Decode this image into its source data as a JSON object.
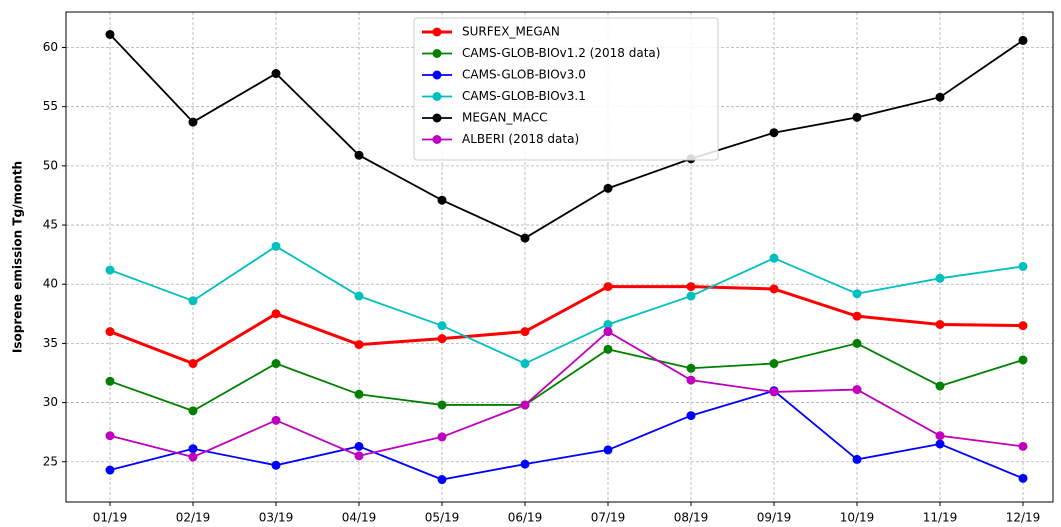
{
  "chart_data": {
    "type": "line",
    "ylabel": "Isoprene emission Tg/month",
    "categories": [
      "01/19",
      "02/19",
      "03/19",
      "04/19",
      "05/19",
      "06/19",
      "07/19",
      "08/19",
      "09/19",
      "10/19",
      "11/19",
      "12/19"
    ],
    "series": [
      {
        "name": "SURFEX_MEGAN",
        "color": "#ff0000",
        "linewidth": 3,
        "values": [
          36.0,
          33.3,
          37.5,
          34.9,
          35.4,
          36.0,
          39.8,
          39.8,
          39.6,
          37.3,
          36.6,
          36.5
        ]
      },
      {
        "name": "CAMS-GLOB-BIOv1.2 (2018 data)",
        "color": "#008000",
        "linewidth": 1.8,
        "values": [
          31.8,
          29.3,
          33.3,
          30.7,
          29.8,
          29.8,
          34.5,
          32.9,
          33.3,
          35.0,
          31.4,
          33.6
        ]
      },
      {
        "name": "CAMS-GLOB-BIOv3.0",
        "color": "#0000ff",
        "linewidth": 1.8,
        "values": [
          24.3,
          26.1,
          24.7,
          26.3,
          23.5,
          24.8,
          26.0,
          28.9,
          31.0,
          25.2,
          26.5,
          23.6
        ]
      },
      {
        "name": "CAMS-GLOB-BIOv3.1",
        "color": "#00bfbf",
        "linewidth": 1.8,
        "values": [
          41.2,
          38.6,
          43.2,
          39.0,
          36.5,
          33.3,
          36.6,
          39.0,
          42.2,
          39.2,
          40.5,
          41.5
        ]
      },
      {
        "name": "MEGAN_MACC",
        "color": "#000000",
        "linewidth": 1.8,
        "values": [
          61.1,
          53.7,
          57.8,
          50.9,
          47.1,
          43.9,
          48.1,
          50.6,
          52.8,
          54.1,
          55.8,
          60.6
        ]
      },
      {
        "name": "ALBERI (2018 data)",
        "color": "#bf00bf",
        "linewidth": 1.8,
        "values": [
          27.2,
          25.4,
          28.5,
          25.5,
          27.1,
          29.8,
          36.0,
          31.9,
          30.9,
          31.1,
          27.2,
          26.3
        ]
      }
    ],
    "ylim": [
      21.6,
      63.0
    ],
    "yticks": [
      25,
      30,
      35,
      40,
      45,
      50,
      55,
      60
    ],
    "grid": true,
    "legend": "upper center"
  }
}
